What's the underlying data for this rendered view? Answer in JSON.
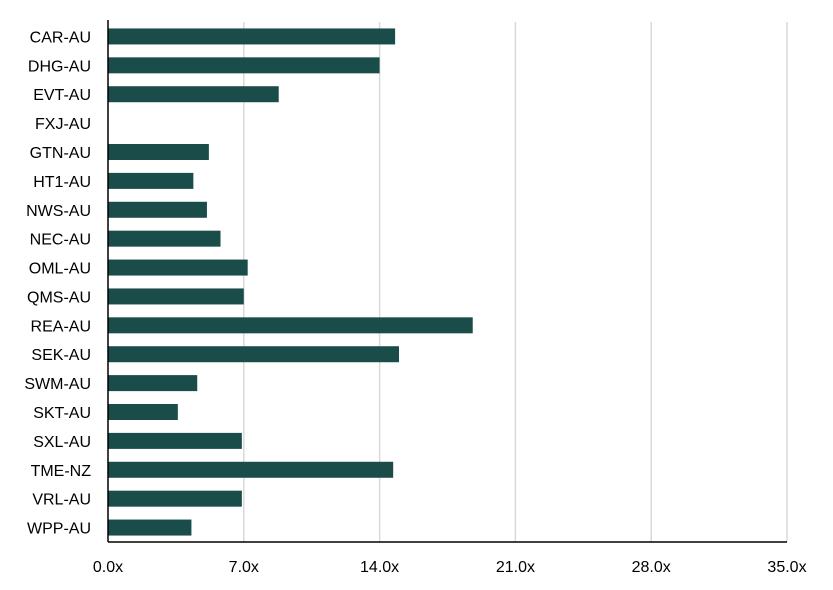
{
  "chart_data": {
    "type": "bar",
    "orientation": "horizontal",
    "categories": [
      "CAR-AU",
      "DHG-AU",
      "EVT-AU",
      "FXJ-AU",
      "GTN-AU",
      "HT1-AU",
      "NWS-AU",
      "NEC-AU",
      "OML-AU",
      "QMS-AU",
      "REA-AU",
      "SEK-AU",
      "SWM-AU",
      "SKT-AU",
      "SXL-AU",
      "TME-NZ",
      "VRL-AU",
      "WPP-AU"
    ],
    "values": [
      14.8,
      14.0,
      8.8,
      null,
      5.2,
      4.4,
      5.1,
      5.8,
      7.2,
      7.0,
      18.8,
      15.0,
      4.6,
      3.6,
      6.9,
      14.7,
      6.9,
      4.3
    ],
    "title": "",
    "xlabel": "",
    "ylabel": "",
    "xlim": [
      0,
      35
    ],
    "x_ticks": [
      "0.0x",
      "7.0x",
      "14.0x",
      "21.0x",
      "28.0x",
      "35.0x"
    ],
    "gridlines": "vertical",
    "legend": "none",
    "colors": {
      "bar": "#1a4d4a",
      "grid": "#d9d9d9",
      "axis": "#000000"
    }
  }
}
